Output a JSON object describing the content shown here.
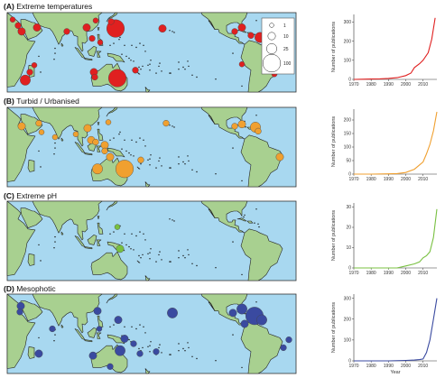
{
  "panels": [
    {
      "id": "A",
      "letter": "(A)",
      "title": "Extreme temperatures",
      "color": "#e02020",
      "sites": [
        {
          "lon": 32,
          "lat": 27,
          "size": 5
        },
        {
          "lon": 36,
          "lat": 21,
          "size": 10
        },
        {
          "lon": 26,
          "lat": 33,
          "size": 3
        },
        {
          "lon": 53,
          "lat": 25,
          "size": 10
        },
        {
          "lon": 86,
          "lat": 21,
          "size": 5
        },
        {
          "lon": 108,
          "lat": 25,
          "size": 10
        },
        {
          "lon": 114,
          "lat": 14,
          "size": 5
        },
        {
          "lon": 123,
          "lat": 10,
          "size": 3
        },
        {
          "lon": 118,
          "lat": 32,
          "size": 3
        },
        {
          "lon": 140,
          "lat": 24,
          "size": 100
        },
        {
          "lon": 135,
          "lat": 31,
          "size": 5
        },
        {
          "lon": 50,
          "lat": -13,
          "size": 3
        },
        {
          "lon": 45,
          "lat": -20,
          "size": 5
        },
        {
          "lon": 40,
          "lat": -28,
          "size": 25
        },
        {
          "lon": 116,
          "lat": -20,
          "size": 10
        },
        {
          "lon": 142,
          "lat": -26,
          "size": 100
        },
        {
          "lon": 117,
          "lat": -25,
          "size": 5
        },
        {
          "lon": 162,
          "lat": -18,
          "size": 5
        },
        {
          "lon": -168,
          "lat": 24,
          "size": 10
        },
        {
          "lon": -88,
          "lat": 21,
          "size": 5
        },
        {
          "lon": -80,
          "lat": 25,
          "size": 10
        },
        {
          "lon": -70,
          "lat": 17,
          "size": 5
        },
        {
          "lon": -60,
          "lat": 15,
          "size": 25
        },
        {
          "lon": -80,
          "lat": -12,
          "size": 3
        },
        {
          "lon": -44,
          "lat": -22,
          "size": 3
        }
      ],
      "legend": {
        "labels": [
          "1",
          "10",
          "25",
          "100"
        ],
        "values": [
          1,
          10,
          25,
          100
        ]
      },
      "chart": {
        "type": "line",
        "x": [
          1970,
          1975,
          1980,
          1985,
          1990,
          1995,
          2000,
          2003,
          2005,
          2008,
          2010,
          2013,
          2015,
          2017
        ],
        "y": [
          0,
          1,
          2,
          3,
          5,
          9,
          20,
          33,
          62,
          82,
          100,
          140,
          210,
          322
        ],
        "ylim": [
          0,
          340
        ],
        "yticks": [
          0,
          100,
          200,
          300
        ],
        "xlim": [
          1970,
          2018
        ],
        "xticks": [
          1970,
          1980,
          1990,
          2000,
          2010
        ],
        "ylabel": "Number of publications",
        "xlabel": ""
      }
    },
    {
      "id": "B",
      "letter": "(B)",
      "title": "Turbid / Urbanised",
      "color": "#f0a030",
      "sites": [
        {
          "lon": 36,
          "lat": 21,
          "size": 10
        },
        {
          "lon": 55,
          "lat": 24,
          "size": 5
        },
        {
          "lon": 58,
          "lat": 15,
          "size": 3
        },
        {
          "lon": 73,
          "lat": 10,
          "size": 3
        },
        {
          "lon": 96,
          "lat": 13,
          "size": 3
        },
        {
          "lon": 109,
          "lat": 19,
          "size": 10
        },
        {
          "lon": 113,
          "lat": 7,
          "size": 10
        },
        {
          "lon": 118,
          "lat": 5,
          "size": 5
        },
        {
          "lon": 128,
          "lat": 2,
          "size": 10
        },
        {
          "lon": 132,
          "lat": 25,
          "size": 3
        },
        {
          "lon": 128,
          "lat": -4,
          "size": 5
        },
        {
          "lon": 134,
          "lat": -10,
          "size": 10
        },
        {
          "lon": 150,
          "lat": -22,
          "size": 100
        },
        {
          "lon": 120,
          "lat": -22,
          "size": 25
        },
        {
          "lon": 168,
          "lat": -13,
          "size": 5
        },
        {
          "lon": -164,
          "lat": 24,
          "size": 5
        },
        {
          "lon": -88,
          "lat": 21,
          "size": 5
        },
        {
          "lon": -80,
          "lat": 23,
          "size": 10
        },
        {
          "lon": -65,
          "lat": 20,
          "size": 25
        },
        {
          "lon": -62,
          "lat": 16,
          "size": 5
        },
        {
          "lon": -38,
          "lat": -10,
          "size": 10
        }
      ],
      "chart": {
        "type": "line",
        "x": [
          1970,
          1980,
          1990,
          1995,
          2000,
          2005,
          2010,
          2012,
          2014,
          2016,
          2018
        ],
        "y": [
          0,
          0,
          1,
          2,
          6,
          18,
          45,
          75,
          110,
          160,
          230
        ],
        "ylim": [
          0,
          240
        ],
        "yticks": [
          0,
          50,
          100,
          150,
          200
        ],
        "xlim": [
          1970,
          2018
        ],
        "xticks": [
          1970,
          1980,
          1990,
          2000,
          2010
        ],
        "ylabel": "Number of publications",
        "xlabel": ""
      }
    },
    {
      "id": "C",
      "letter": "(C)",
      "title": "Extreme pH",
      "color": "#78c040",
      "sites": [
        {
          "lon": 145,
          "lat": -8,
          "size": 10
        },
        {
          "lon": 142,
          "lat": 14,
          "size": 3
        }
      ],
      "chart": {
        "type": "line",
        "x": [
          1970,
          1990,
          1995,
          2000,
          2005,
          2008,
          2010,
          2012,
          2014,
          2016,
          2018
        ],
        "y": [
          0,
          0,
          0,
          1,
          2,
          3,
          5,
          6,
          8,
          15,
          29
        ],
        "ylim": [
          0,
          32
        ],
        "yticks": [
          0,
          10,
          20,
          30
        ],
        "xlim": [
          1970,
          2018
        ],
        "xticks": [
          1970,
          1980,
          1990,
          2000,
          2010
        ],
        "ylabel": "Number of publications",
        "xlabel": ""
      }
    },
    {
      "id": "D",
      "letter": "(D)",
      "title": "Mesophotic",
      "color": "#3a4aa0",
      "sites": [
        {
          "lon": 35,
          "lat": 28,
          "size": 10
        },
        {
          "lon": 34,
          "lat": 22,
          "size": 5
        },
        {
          "lon": 70,
          "lat": 5,
          "size": 5
        },
        {
          "lon": 120,
          "lat": 23,
          "size": 10
        },
        {
          "lon": 143,
          "lat": 14,
          "size": 10
        },
        {
          "lon": 122,
          "lat": 5,
          "size": 3
        },
        {
          "lon": 150,
          "lat": -5,
          "size": 10
        },
        {
          "lon": 145,
          "lat": -17,
          "size": 25
        },
        {
          "lon": 115,
          "lat": -22,
          "size": 10
        },
        {
          "lon": 134,
          "lat": -33,
          "size": 5
        },
        {
          "lon": 160,
          "lat": -10,
          "size": 5
        },
        {
          "lon": 167,
          "lat": -20,
          "size": 5
        },
        {
          "lon": 55,
          "lat": -20,
          "size": 10
        },
        {
          "lon": -157,
          "lat": 21,
          "size": 25
        },
        {
          "lon": -175,
          "lat": -18,
          "size": 5
        },
        {
          "lon": -80,
          "lat": 25,
          "size": 25
        },
        {
          "lon": -90,
          "lat": 21,
          "size": 10
        },
        {
          "lon": -66,
          "lat": 18,
          "size": 100
        },
        {
          "lon": -58,
          "lat": 14,
          "size": 25
        },
        {
          "lon": -77,
          "lat": 10,
          "size": 10
        },
        {
          "lon": -34,
          "lat": -14,
          "size": 5
        },
        {
          "lon": -28,
          "lat": -6,
          "size": 5
        }
      ],
      "chart": {
        "type": "line",
        "x": [
          1970,
          1980,
          1990,
          2000,
          2005,
          2008,
          2010,
          2012,
          2014,
          2016,
          2018
        ],
        "y": [
          0,
          0,
          0,
          2,
          4,
          6,
          9,
          40,
          100,
          200,
          300
        ],
        "ylim": [
          0,
          320
        ],
        "yticks": [
          0,
          100,
          200,
          300
        ],
        "xlim": [
          1970,
          2018
        ],
        "xticks": [
          1970,
          1980,
          1990,
          2000,
          2010
        ],
        "ylabel": "Number of publications",
        "xlabel": "Year"
      }
    }
  ],
  "chart_data": [
    {
      "type": "line",
      "title": "Extreme temperatures",
      "x": [
        1970,
        1975,
        1980,
        1985,
        1990,
        1995,
        2000,
        2003,
        2005,
        2008,
        2010,
        2013,
        2015,
        2017
      ],
      "y": [
        0,
        1,
        2,
        3,
        5,
        9,
        20,
        33,
        62,
        82,
        100,
        140,
        210,
        322
      ],
      "ylabel": "Number of publications"
    },
    {
      "type": "line",
      "title": "Turbid / Urbanised",
      "x": [
        1970,
        1980,
        1990,
        1995,
        2000,
        2005,
        2010,
        2012,
        2014,
        2016,
        2018
      ],
      "y": [
        0,
        0,
        1,
        2,
        6,
        18,
        45,
        75,
        110,
        160,
        230
      ],
      "ylabel": "Number of publications"
    },
    {
      "type": "line",
      "title": "Extreme pH",
      "x": [
        1970,
        1990,
        1995,
        2000,
        2005,
        2008,
        2010,
        2012,
        2014,
        2016,
        2018
      ],
      "y": [
        0,
        0,
        0,
        1,
        2,
        3,
        5,
        6,
        8,
        15,
        29
      ],
      "ylabel": "Number of publications"
    },
    {
      "type": "line",
      "title": "Mesophotic",
      "x": [
        1970,
        1980,
        1990,
        2000,
        2005,
        2008,
        2010,
        2012,
        2014,
        2016,
        2018
      ],
      "y": [
        0,
        0,
        0,
        2,
        4,
        6,
        9,
        40,
        100,
        200,
        300
      ],
      "ylabel": "Number of publications",
      "xlabel": "Year"
    }
  ],
  "map_style": {
    "ocean": "#a8d8f0",
    "land": "#a8d090",
    "coast": "#222222"
  }
}
